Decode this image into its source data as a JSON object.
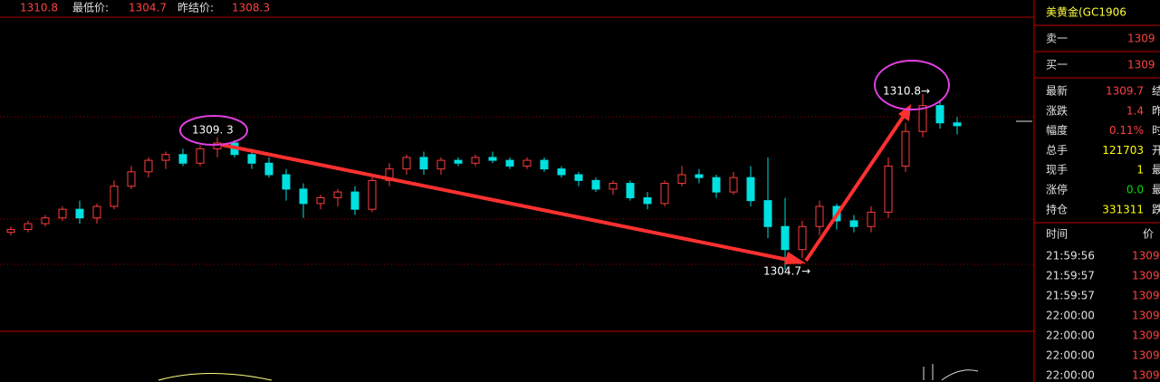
{
  "top_bar": {
    "high": "1310.8",
    "low_label": "最低价:",
    "low": "1304.7",
    "settle_label": "昨结价:",
    "settle": "1308.3"
  },
  "chart_data": {
    "type": "candlestick",
    "ylim": [
      1302.5,
      1313.5
    ],
    "up_color": "#ff3b3b",
    "down_color": "#00e0e0",
    "candles": [
      [
        1306.0,
        1306.2,
        1305.9,
        1306.1
      ],
      [
        1306.1,
        1306.4,
        1306.0,
        1306.3
      ],
      [
        1306.3,
        1306.6,
        1306.2,
        1306.5
      ],
      [
        1306.5,
        1306.9,
        1306.4,
        1306.8
      ],
      [
        1306.8,
        1307.1,
        1306.3,
        1306.5
      ],
      [
        1306.5,
        1307.0,
        1306.3,
        1306.9
      ],
      [
        1306.9,
        1307.8,
        1306.8,
        1307.6
      ],
      [
        1307.6,
        1308.3,
        1307.5,
        1308.1
      ],
      [
        1308.1,
        1308.6,
        1307.9,
        1308.5
      ],
      [
        1308.5,
        1308.8,
        1308.2,
        1308.7
      ],
      [
        1308.7,
        1308.9,
        1308.3,
        1308.4
      ],
      [
        1308.4,
        1309.0,
        1308.3,
        1308.9
      ],
      [
        1308.9,
        1309.3,
        1308.6,
        1309.1
      ],
      [
        1309.1,
        1309.2,
        1308.6,
        1308.7
      ],
      [
        1308.7,
        1308.9,
        1308.2,
        1308.4
      ],
      [
        1308.4,
        1308.6,
        1307.9,
        1308.0
      ],
      [
        1308.0,
        1308.2,
        1307.1,
        1307.5
      ],
      [
        1307.5,
        1307.7,
        1306.5,
        1307.0
      ],
      [
        1307.0,
        1307.3,
        1306.8,
        1307.2
      ],
      [
        1307.2,
        1307.5,
        1306.9,
        1307.4
      ],
      [
        1307.4,
        1307.6,
        1306.6,
        1306.8
      ],
      [
        1306.8,
        1307.9,
        1306.7,
        1307.8
      ],
      [
        1307.8,
        1308.4,
        1307.6,
        1308.2
      ],
      [
        1308.2,
        1308.7,
        1308.0,
        1308.6
      ],
      [
        1308.6,
        1308.8,
        1308.0,
        1308.2
      ],
      [
        1308.2,
        1308.6,
        1308.0,
        1308.5
      ],
      [
        1308.5,
        1308.6,
        1308.3,
        1308.4
      ],
      [
        1308.4,
        1308.7,
        1308.3,
        1308.6
      ],
      [
        1308.6,
        1308.8,
        1308.4,
        1308.5
      ],
      [
        1308.5,
        1308.6,
        1308.2,
        1308.3
      ],
      [
        1308.3,
        1308.6,
        1308.2,
        1308.5
      ],
      [
        1308.5,
        1308.6,
        1308.1,
        1308.2
      ],
      [
        1308.2,
        1308.3,
        1307.9,
        1308.0
      ],
      [
        1308.0,
        1308.1,
        1307.6,
        1307.8
      ],
      [
        1307.8,
        1307.9,
        1307.4,
        1307.5
      ],
      [
        1307.5,
        1307.8,
        1307.3,
        1307.7
      ],
      [
        1307.7,
        1307.8,
        1307.1,
        1307.2
      ],
      [
        1307.2,
        1307.4,
        1306.8,
        1307.0
      ],
      [
        1307.0,
        1307.8,
        1306.9,
        1307.7
      ],
      [
        1307.7,
        1308.3,
        1307.6,
        1308.0
      ],
      [
        1308.0,
        1308.2,
        1307.7,
        1307.9
      ],
      [
        1307.9,
        1308.0,
        1307.2,
        1307.4
      ],
      [
        1307.4,
        1308.1,
        1307.3,
        1307.9
      ],
      [
        1307.9,
        1308.3,
        1306.9,
        1307.1
      ],
      [
        1307.1,
        1308.6,
        1305.8,
        1306.2
      ],
      [
        1306.2,
        1307.2,
        1304.7,
        1305.4
      ],
      [
        1305.4,
        1306.4,
        1305.1,
        1306.2
      ],
      [
        1306.2,
        1307.1,
        1305.9,
        1306.9
      ],
      [
        1306.9,
        1307.0,
        1306.1,
        1306.4
      ],
      [
        1306.4,
        1306.6,
        1306.0,
        1306.2
      ],
      [
        1306.2,
        1306.9,
        1306.0,
        1306.7
      ],
      [
        1306.7,
        1308.6,
        1306.5,
        1308.3
      ],
      [
        1308.3,
        1309.8,
        1308.1,
        1309.5
      ],
      [
        1309.5,
        1310.8,
        1309.3,
        1310.4
      ],
      [
        1310.4,
        1310.6,
        1309.6,
        1309.8
      ],
      [
        1309.8,
        1310.0,
        1309.4,
        1309.7
      ]
    ],
    "annotations": [
      "1309. 3",
      "1310.8→",
      "1304.7→"
    ]
  },
  "quote_panel": {
    "title": "美黄金(GC1906",
    "bids": [
      {
        "label": "卖一",
        "value": "1309"
      },
      {
        "label": "买一",
        "value": "1309"
      }
    ],
    "stats": [
      {
        "label": "最新",
        "value": "1309.7",
        "color": "#ff4040",
        "side": "结"
      },
      {
        "label": "涨跌",
        "value": "1.4",
        "color": "#ff4040",
        "side": "昨"
      },
      {
        "label": "幅度",
        "value": "0.11%",
        "color": "#ff4040",
        "side": "时"
      },
      {
        "label": "总手",
        "value": "121703",
        "color": "#ffff00",
        "side": "开"
      },
      {
        "label": "现手",
        "value": "1",
        "color": "#ffff00",
        "side": "最"
      },
      {
        "label": "涨停",
        "value": "0.0",
        "color": "#00e000",
        "side": "最"
      },
      {
        "label": "持仓",
        "value": "331311",
        "color": "#ffff00",
        "side": "跌"
      }
    ],
    "ticks_header": {
      "time": "时间",
      "price": "价"
    },
    "ticks": [
      {
        "time": "21:59:56",
        "price": "1309"
      },
      {
        "time": "21:59:57",
        "price": "1309"
      },
      {
        "time": "21:59:57",
        "price": "1309"
      },
      {
        "time": "22:00:00",
        "price": "1309"
      },
      {
        "time": "22:00:00",
        "price": "1309"
      },
      {
        "time": "22:00:00",
        "price": "1309"
      },
      {
        "time": "22:00:00",
        "price": "1309"
      }
    ]
  }
}
